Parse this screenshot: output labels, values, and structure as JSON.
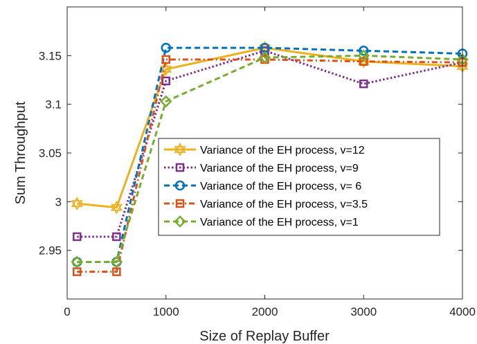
{
  "chart_data": {
    "type": "line",
    "title": "",
    "xlabel": "Size of Replay Buffer",
    "ylabel": "Sum Throughput",
    "xlim": [
      0,
      4000
    ],
    "ylim": [
      2.9,
      3.2
    ],
    "xticks": [
      0,
      1000,
      2000,
      3000,
      4000
    ],
    "yticks": [
      2.95,
      3,
      3.05,
      3.1,
      3.15
    ],
    "xtick_labels": [
      "0",
      "1000",
      "2000",
      "3000",
      "4000"
    ],
    "ytick_labels": [
      "2.95",
      "3",
      "3.05",
      "3.1",
      "3.15"
    ],
    "grid": false,
    "legend_position": "lower-right inside",
    "series": [
      {
        "name": "Variance of the EH process, v=12",
        "color": "#EDB120",
        "line": "solid",
        "marker": "hexagram",
        "points": [
          [
            100,
            2.998
          ],
          [
            500,
            2.994
          ],
          [
            1000,
            3.136
          ],
          [
            2000,
            3.158
          ],
          [
            3000,
            3.144
          ],
          [
            4000,
            3.139
          ]
        ]
      },
      {
        "name": "Variance of the EH process, v=9",
        "color": "#7E2F8E",
        "line": "dotted",
        "marker": "square",
        "points": [
          [
            100,
            2.964
          ],
          [
            500,
            2.964
          ],
          [
            1000,
            3.124
          ],
          [
            2000,
            3.155
          ],
          [
            3000,
            3.121
          ],
          [
            4000,
            3.143
          ]
        ]
      },
      {
        "name": "Variance of the EH process, v= 6",
        "color": "#0072BD",
        "line": "dashed",
        "marker": "circle",
        "points": [
          [
            100,
            2.938
          ],
          [
            500,
            2.938
          ],
          [
            1000,
            3.158
          ],
          [
            2000,
            3.158
          ],
          [
            3000,
            3.155
          ],
          [
            4000,
            3.152
          ]
        ]
      },
      {
        "name": "Variance of the EH process, v=3.5",
        "color": "#D95319",
        "line": "dashdot",
        "marker": "square",
        "points": [
          [
            100,
            2.928
          ],
          [
            500,
            2.928
          ],
          [
            1000,
            3.146
          ],
          [
            2000,
            3.146
          ],
          [
            3000,
            3.144
          ],
          [
            4000,
            3.143
          ]
        ]
      },
      {
        "name": "Variance of the EH process, v=1",
        "color": "#77AC30",
        "line": "dashed",
        "marker": "diamond",
        "points": [
          [
            100,
            2.938
          ],
          [
            500,
            2.938
          ],
          [
            1000,
            3.103
          ],
          [
            2000,
            3.148
          ],
          [
            3000,
            3.15
          ],
          [
            4000,
            3.146
          ]
        ]
      }
    ]
  }
}
